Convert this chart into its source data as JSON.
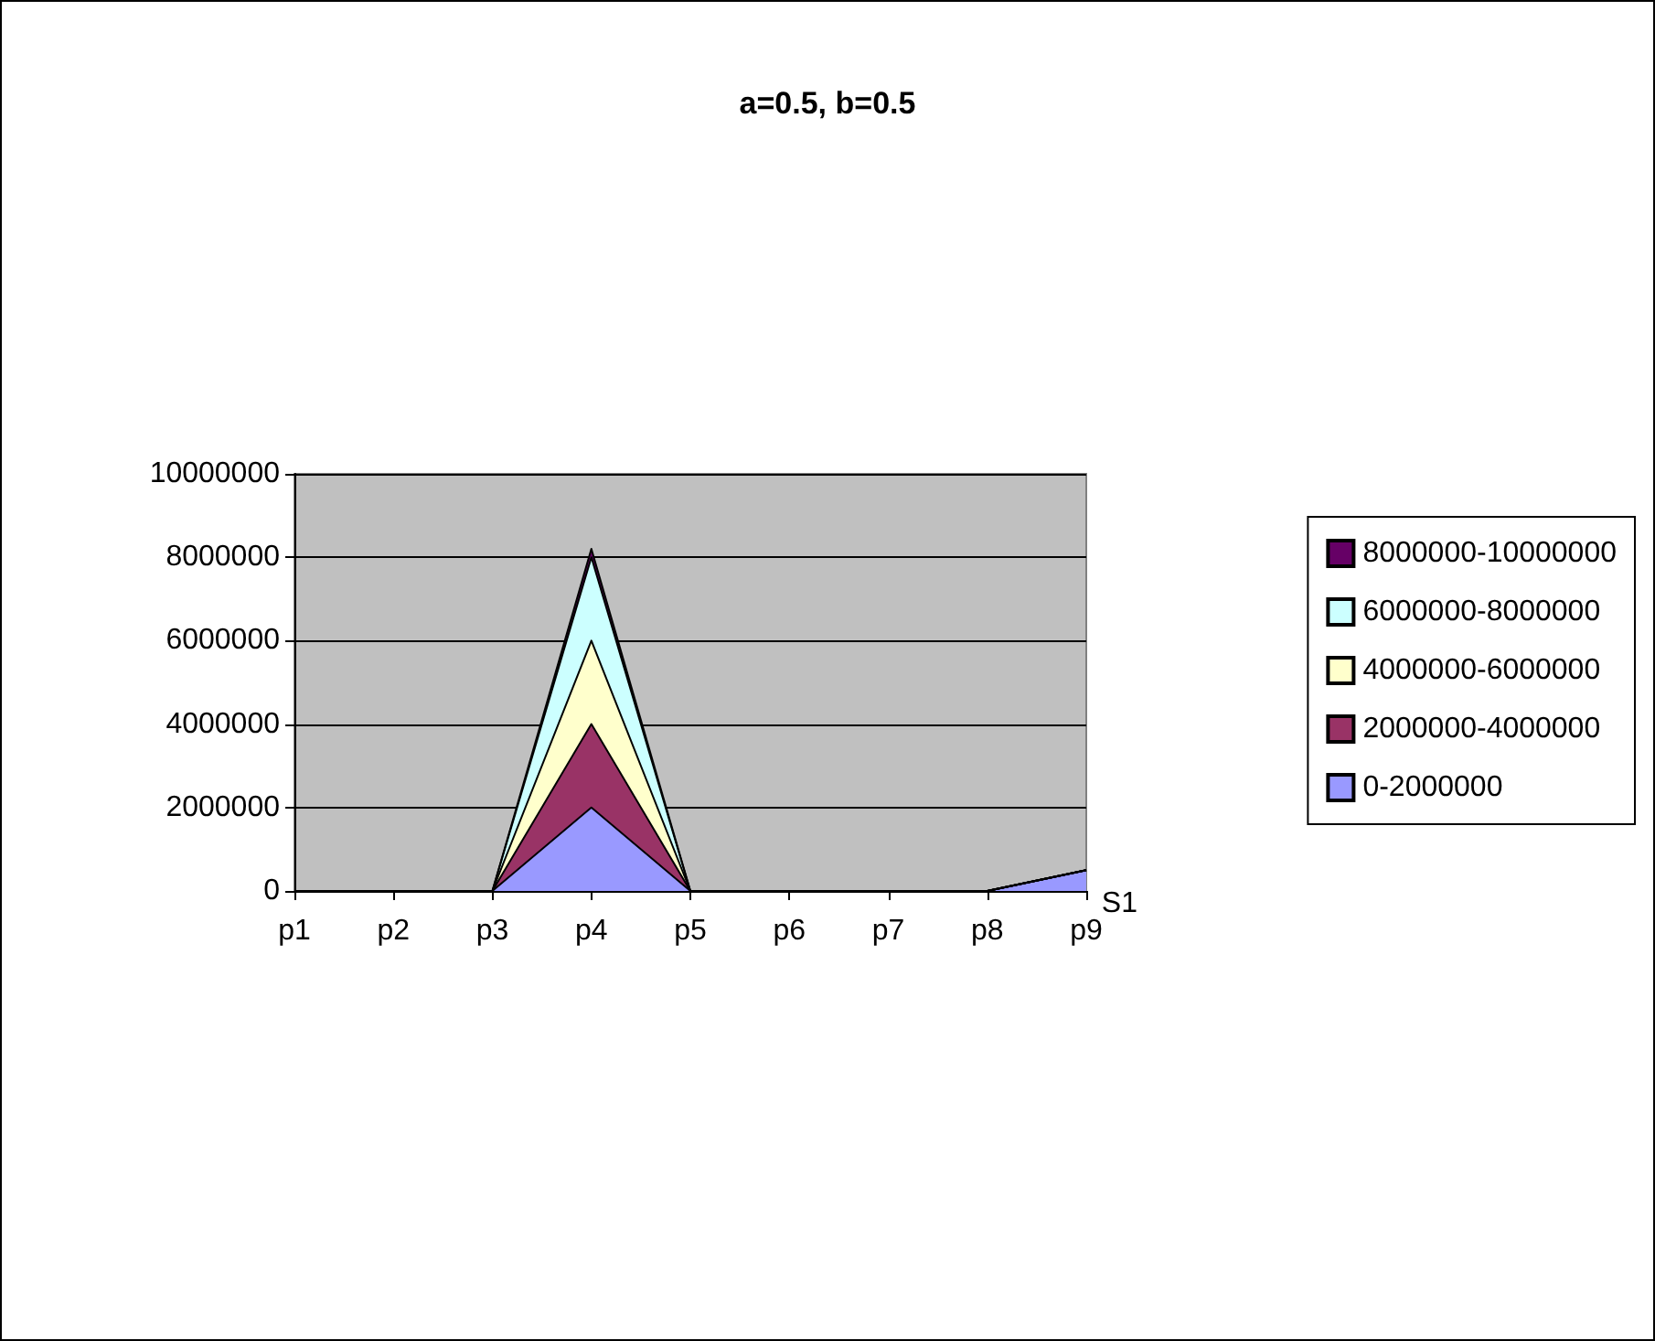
{
  "chart_data": {
    "type": "area",
    "stacked": true,
    "title": "a=0.5, b=0.5",
    "categories": [
      "p1",
      "p2",
      "p3",
      "p4",
      "p5",
      "p6",
      "p7",
      "p8",
      "p9"
    ],
    "series": [
      {
        "name": "0-2000000",
        "color": "#9999ff",
        "values": [
          0,
          0,
          0,
          2000000,
          0,
          0,
          0,
          0,
          500000
        ]
      },
      {
        "name": "2000000-4000000",
        "color": "#993366",
        "values": [
          0,
          0,
          0,
          2000000,
          0,
          0,
          0,
          0,
          0
        ]
      },
      {
        "name": "4000000-6000000",
        "color": "#ffffcc",
        "values": [
          0,
          0,
          0,
          2000000,
          0,
          0,
          0,
          0,
          0
        ]
      },
      {
        "name": "6000000-8000000",
        "color": "#ccffff",
        "values": [
          0,
          0,
          0,
          2000000,
          0,
          0,
          0,
          0,
          0
        ]
      },
      {
        "name": "8000000-10000000",
        "color": "#660066",
        "values": [
          0,
          0,
          0,
          200000,
          0,
          0,
          0,
          0,
          0
        ]
      }
    ],
    "ylim": [
      0,
      10000000
    ],
    "yticks": [
      0,
      2000000,
      4000000,
      6000000,
      8000000,
      10000000
    ],
    "grid": "y",
    "legend": "right",
    "annotations": [
      "S1"
    ]
  }
}
